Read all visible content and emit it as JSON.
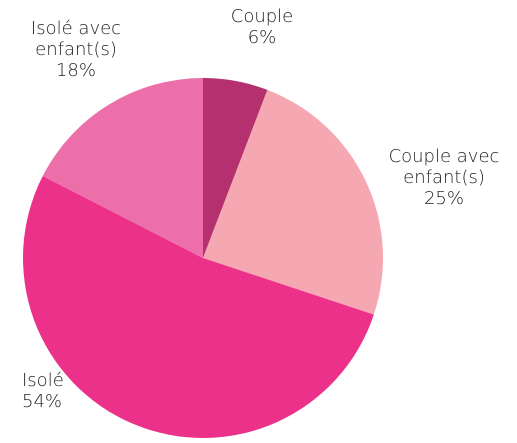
{
  "chart_data": {
    "type": "pie",
    "categories": [
      "Couple",
      "Couple avec enfant(s)",
      "Isolé",
      "Isolé avec enfant(s)"
    ],
    "values": [
      6,
      25,
      54,
      18
    ],
    "value_labels": [
      "6%",
      "25%",
      "54%",
      "18%"
    ],
    "colors": [
      "#b5306f",
      "#f5a8b1",
      "#ec318a",
      "#ec6fa9"
    ]
  }
}
